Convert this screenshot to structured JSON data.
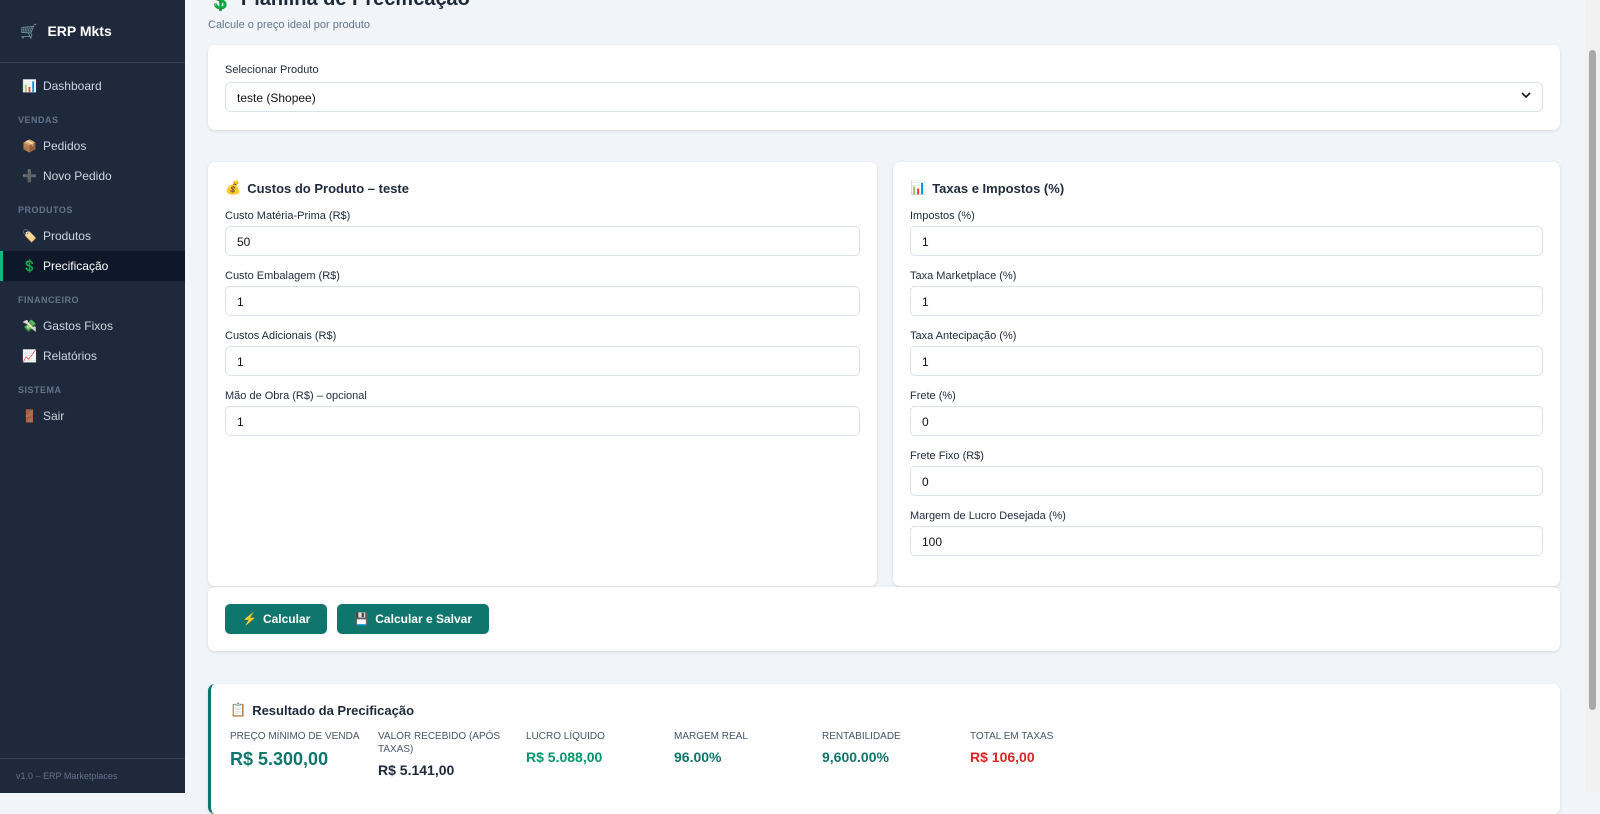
{
  "sidebar": {
    "logo_icon": "🛒",
    "brand": "ERP Mkts",
    "items": [
      {
        "icon": "📊",
        "label": "Dashboard"
      }
    ],
    "sections": [
      {
        "title": "VENDAS",
        "items": [
          {
            "icon": "📦",
            "label": "Pedidos"
          },
          {
            "icon": "➕",
            "label": "Novo Pedido"
          }
        ]
      },
      {
        "title": "PRODUTOS",
        "items": [
          {
            "icon": "🏷️",
            "label": "Produtos"
          },
          {
            "icon": "💲",
            "label": "Precificação",
            "active": true
          }
        ]
      },
      {
        "title": "FINANCEIRO",
        "items": [
          {
            "icon": "💸",
            "label": "Gastos Fixos"
          },
          {
            "icon": "📈",
            "label": "Relatórios"
          }
        ]
      },
      {
        "title": "SISTEMA",
        "items": [
          {
            "icon": "🚪",
            "label": "Sair"
          }
        ]
      }
    ],
    "footer": "v1.0 – ERP Marketplaces"
  },
  "header": {
    "icon": "💲",
    "title": "Planilha de Precificação",
    "subtitle": "Calcule o preço ideal por produto"
  },
  "product_select": {
    "label": "Selecionar Produto",
    "value": "teste (Shopee)"
  },
  "costs": {
    "icon": "💰",
    "title": "Custos do Produto – teste",
    "fields": [
      {
        "label": "Custo Matéria-Prima (R$)",
        "value": 50
      },
      {
        "label": "Custo Embalagem (R$)",
        "value": 1
      },
      {
        "label": "Custos Adicionais (R$)",
        "value": 1
      },
      {
        "label": "Mão de Obra (R$) – opcional",
        "value": 1
      }
    ]
  },
  "taxes": {
    "icon": "📊",
    "title": "Taxas e Impostos (%)",
    "fields": [
      {
        "label": "Impostos (%)",
        "value": 1
      },
      {
        "label": "Taxa Marketplace (%)",
        "value": 1
      },
      {
        "label": "Taxa Antecipação (%)",
        "value": 1
      },
      {
        "label": "Frete (%)",
        "value": 0
      },
      {
        "label": "Frete Fixo (R$)",
        "value": 0
      },
      {
        "label": "Margem de Lucro Desejada (%)",
        "value": 100
      }
    ]
  },
  "actions": [
    {
      "icon": "⚡",
      "label": "Calcular"
    },
    {
      "icon": "💾",
      "label": "Calcular e Salvar"
    }
  ],
  "result": {
    "icon": "📋",
    "title": "Resultado da Precificação",
    "metrics": [
      {
        "label": "PREÇO MÍNIMO DE VENDA",
        "value": "R$ 5.300,00",
        "tone": "teal",
        "size": "large"
      },
      {
        "label": "VALOR RECEBIDO (APÓS TAXAS)",
        "value": "R$ 5.141,00",
        "tone": "dark"
      },
      {
        "label": "LUCRO LÍQUIDO",
        "value": "R$ 5.088,00",
        "tone": "green"
      },
      {
        "label": "MARGEM REAL",
        "value": "96.00%",
        "tone": "teal"
      },
      {
        "label": "RENTABILIDADE",
        "value": "9,600.00%",
        "tone": "teal"
      },
      {
        "label": "TOTAL EM TAXAS",
        "value": "R$ 106,00",
        "tone": "red"
      }
    ]
  }
}
